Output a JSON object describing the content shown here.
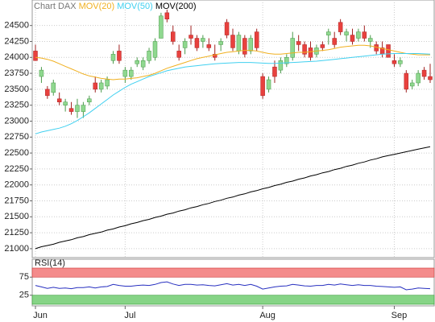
{
  "chart_data": [
    {
      "type": "candlestick",
      "title": "Chart DAX",
      "categories": [
        "Jun",
        null,
        null,
        null,
        null,
        null,
        null,
        null,
        null,
        null,
        null,
        null,
        null,
        null,
        null,
        "Jul",
        null,
        null,
        null,
        null,
        null,
        null,
        null,
        null,
        null,
        null,
        null,
        null,
        null,
        null,
        null,
        null,
        null,
        null,
        null,
        null,
        null,
        null,
        "Aug",
        null,
        null,
        null,
        null,
        null,
        null,
        null,
        null,
        null,
        null,
        null,
        null,
        null,
        null,
        null,
        null,
        null,
        null,
        null,
        null,
        null,
        "Sep",
        null,
        null,
        null,
        null,
        null,
        null
      ],
      "open": [
        24100,
        23700,
        23500,
        23450,
        23350,
        23250,
        23200,
        23150,
        23150,
        23300,
        23600,
        23500,
        23550,
        23950,
        24100,
        23700,
        23700,
        23900,
        23850,
        23950,
        24000,
        24300,
        24700,
        24400,
        24100,
        24150,
        24350,
        24300,
        24250,
        24200,
        24050,
        24200,
        24550,
        24350,
        24100,
        24300,
        24100,
        24400,
        23700,
        23500,
        23850,
        23800,
        23900,
        24000,
        24250,
        24200,
        24150,
        24050,
        24200,
        24350,
        24300,
        24550,
        24350,
        24350,
        24300,
        24400,
        24250,
        24200,
        24150,
        24200,
        23950,
        23900,
        23750,
        23550,
        23600,
        23800,
        23700
      ],
      "high": [
        24200,
        23850,
        23550,
        23650,
        23450,
        23350,
        23300,
        23350,
        23300,
        23400,
        23700,
        23650,
        23700,
        24100,
        24200,
        23850,
        23850,
        24000,
        24000,
        24150,
        24300,
        24700,
        24750,
        24500,
        24200,
        24300,
        24500,
        24350,
        24350,
        24300,
        24200,
        24300,
        24600,
        24450,
        24400,
        24350,
        24350,
        24450,
        23750,
        23700,
        23950,
        24000,
        24050,
        24400,
        24350,
        24250,
        24250,
        24200,
        24250,
        24450,
        24400,
        24600,
        24450,
        24450,
        24450,
        24500,
        24350,
        24250,
        24250,
        24200,
        24050,
        24000,
        23800,
        23650,
        23800,
        23850,
        23900
      ],
      "low": [
        23950,
        23600,
        23350,
        23400,
        23250,
        23150,
        23100,
        23050,
        23050,
        23250,
        23450,
        23450,
        23500,
        23900,
        23900,
        23600,
        23650,
        23850,
        23800,
        23900,
        23950,
        24300,
        24550,
        24200,
        23950,
        24050,
        24200,
        24100,
        24150,
        24100,
        23950,
        24100,
        24300,
        24100,
        24050,
        24000,
        24050,
        24100,
        23350,
        23450,
        23600,
        23750,
        23850,
        23950,
        24100,
        24000,
        23950,
        24000,
        24100,
        24200,
        24150,
        24350,
        24250,
        24200,
        24250,
        24250,
        24150,
        24050,
        24000,
        24000,
        23850,
        23850,
        23450,
        23500,
        23550,
        23650,
        23600
      ],
      "close": [
        23950,
        23800,
        23400,
        23600,
        23300,
        23300,
        23150,
        23250,
        23250,
        23350,
        23500,
        23600,
        23650,
        24050,
        23950,
        23800,
        23800,
        23950,
        23950,
        24100,
        24250,
        24650,
        24600,
        24250,
        24000,
        24250,
        24300,
        24150,
        24300,
        24150,
        24000,
        24250,
        24350,
        24150,
        24350,
        24050,
        24300,
        24150,
        23400,
        23650,
        23700,
        23950,
        24000,
        24300,
        24200,
        24050,
        24000,
        24150,
        24150,
        24400,
        24200,
        24400,
        24400,
        24250,
        24400,
        24300,
        24300,
        24100,
        24050,
        24000,
        23900,
        23950,
        23500,
        23600,
        23750,
        23700,
        23650
      ],
      "up_color": "#8fd88f",
      "down_color": "#e8413e",
      "series": [
        {
          "name": "MOV(20)",
          "color": "#f0b020",
          "values": [
            24000,
            23990,
            23970,
            23940,
            23900,
            23860,
            23820,
            23780,
            23740,
            23710,
            23690,
            23670,
            23660,
            23650,
            23660,
            23660,
            23670,
            23680,
            23700,
            23720,
            23750,
            23790,
            23830,
            23860,
            23890,
            23920,
            23950,
            23980,
            24000,
            24020,
            24040,
            24060,
            24080,
            24090,
            24100,
            24110,
            24110,
            24100,
            24080,
            24060,
            24050,
            24050,
            24060,
            24070,
            24080,
            24080,
            24090,
            24100,
            24110,
            24120,
            24140,
            24160,
            24170,
            24180,
            24190,
            24190,
            24180,
            24160,
            24140,
            24120,
            24100,
            24080,
            24060,
            24050,
            24040,
            24040,
            24040
          ]
        },
        {
          "name": "MOV(50)",
          "color": "#40d0f0",
          "values": [
            22800,
            22830,
            22850,
            22870,
            22890,
            22920,
            22960,
            23010,
            23070,
            23130,
            23200,
            23270,
            23340,
            23410,
            23470,
            23530,
            23580,
            23620,
            23660,
            23700,
            23730,
            23760,
            23790,
            23810,
            23830,
            23850,
            23860,
            23870,
            23880,
            23890,
            23900,
            23905,
            23910,
            23915,
            23920,
            23920,
            23920,
            23915,
            23910,
            23905,
            23905,
            23910,
            23915,
            23920,
            23925,
            23930,
            23935,
            23940,
            23950,
            23960,
            23970,
            23980,
            23990,
            24000,
            24010,
            24020,
            24030,
            24040,
            24050,
            24055,
            24060,
            24060,
            24060,
            24060,
            24060,
            24055,
            24050
          ]
        },
        {
          "name": "MOV(200)",
          "color": "#000000",
          "values": [
            21000,
            21030,
            21050,
            21070,
            21100,
            21120,
            21140,
            21170,
            21190,
            21220,
            21240,
            21260,
            21290,
            21310,
            21340,
            21360,
            21390,
            21410,
            21440,
            21460,
            21490,
            21510,
            21540,
            21560,
            21590,
            21610,
            21640,
            21660,
            21690,
            21710,
            21740,
            21760,
            21790,
            21810,
            21840,
            21860,
            21890,
            21910,
            21940,
            21960,
            21990,
            22010,
            22040,
            22060,
            22090,
            22110,
            22140,
            22160,
            22190,
            22210,
            22240,
            22260,
            22290,
            22310,
            22340,
            22360,
            22390,
            22410,
            22440,
            22460,
            22480,
            22500,
            22520,
            22540,
            22560,
            22580,
            22600
          ]
        }
      ],
      "ylim": [
        20860,
        24900
      ],
      "yticks": [
        21000,
        21250,
        21500,
        21750,
        22000,
        22250,
        22500,
        22750,
        23000,
        23250,
        23500,
        23750,
        24000,
        24250,
        24500
      ],
      "grid": true
    },
    {
      "type": "line",
      "title": "RSI(14)",
      "color": "#2830c0",
      "values": [
        52,
        48,
        44,
        47,
        44,
        45,
        43,
        46,
        46,
        48,
        45,
        48,
        49,
        55,
        52,
        50,
        50,
        52,
        53,
        52,
        55,
        60,
        62,
        56,
        52,
        55,
        55,
        53,
        54,
        52,
        51,
        54,
        57,
        53,
        55,
        52,
        55,
        50,
        42,
        45,
        48,
        50,
        51,
        55,
        53,
        51,
        50,
        52,
        52,
        55,
        53,
        56,
        54,
        52,
        54,
        52,
        52,
        50,
        49,
        48,
        47,
        48,
        40,
        42,
        45,
        44,
        43
      ],
      "ylim": [
        0,
        100
      ],
      "yticks": [
        25,
        75
      ],
      "overbought_color": "#f48b8b",
      "oversold_color": "#86d486"
    }
  ]
}
